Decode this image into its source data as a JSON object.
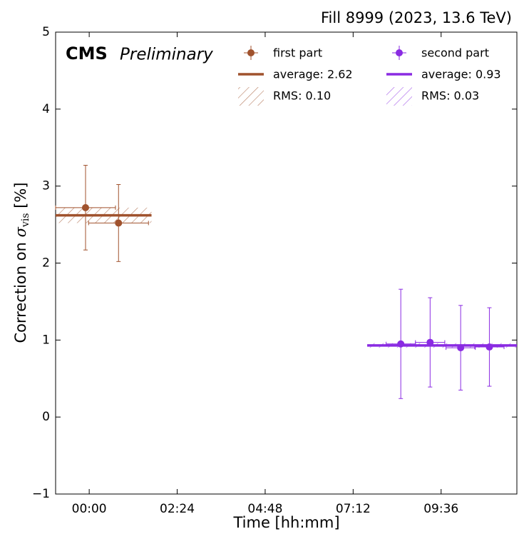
{
  "chart_data": {
    "type": "errorbar",
    "title": "Fill 8999 (2023, 13.6 TeV)",
    "annotations": [
      "CMS",
      "Preliminary"
    ],
    "xlabel": "Time [hh:mm]",
    "ylabel": [
      "Correction on ",
      "σ",
      "vis",
      " [%]"
    ],
    "xlim": [
      -55,
      700
    ],
    "ylim": [
      -1,
      5
    ],
    "xticks": [
      {
        "value": 0,
        "label": "00:00"
      },
      {
        "value": 144,
        "label": "02:24"
      },
      {
        "value": 288,
        "label": "04:48"
      },
      {
        "value": 432,
        "label": "07:12"
      },
      {
        "value": 576,
        "label": "09:36"
      }
    ],
    "yticks": [
      {
        "value": -1,
        "label": "−1"
      },
      0,
      1,
      2,
      3,
      4,
      5
    ],
    "series": [
      {
        "name": "first part",
        "color": "#a0522d",
        "x": [
          -6,
          48
        ],
        "values": [
          2.72,
          2.52
        ],
        "errors": [
          0.55,
          0.5
        ],
        "xerr": [
          49,
          49
        ],
        "average": 2.62,
        "average_label": "average: 2.62",
        "rms": 0.1,
        "rms_label": "RMS: 0.10",
        "average_x": [
          -55,
          102
        ]
      },
      {
        "name": "second part",
        "color": "#8a2be2",
        "x": [
          510,
          558,
          608,
          655
        ],
        "values": [
          0.95,
          0.97,
          0.9,
          0.91
        ],
        "errors": [
          0.71,
          0.58,
          0.55,
          0.51
        ],
        "xerr": [
          24,
          24,
          24,
          24
        ],
        "average": 0.93,
        "average_label": "average: 0.93",
        "rms": 0.03,
        "rms_label": "RMS: 0.03",
        "average_x": [
          455,
          700
        ]
      }
    ]
  }
}
